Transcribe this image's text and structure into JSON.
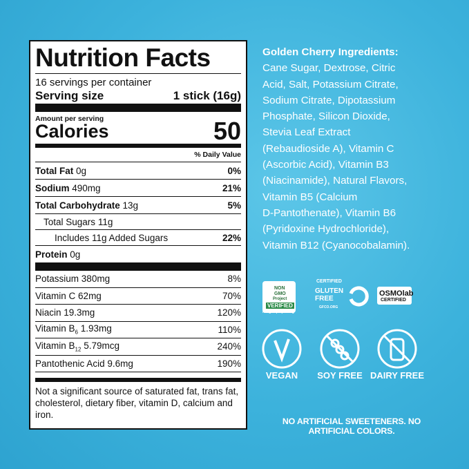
{
  "label": {
    "title": "Nutrition Facts",
    "servings": "16 servings per container",
    "serving_size_label": "Serving size",
    "serving_size_value": "1 stick (16g)",
    "amount_per_serving": "Amount per serving",
    "calories_label": "Calories",
    "calories_value": "50",
    "daily_value_header": "% Daily Value",
    "nutrients": [
      {
        "name": "Total Fat",
        "amount": "0g",
        "dv": "0%"
      },
      {
        "name": "Sodium",
        "amount": "490mg",
        "dv": "21%"
      },
      {
        "name": "Total Carbohydrate",
        "amount": "13g",
        "dv": "5%"
      },
      {
        "name": "Total Sugars",
        "amount": "11g"
      },
      {
        "name": "Includes 11g Added Sugars",
        "dv": "22%"
      },
      {
        "name": "Protein",
        "amount": "0g"
      }
    ],
    "vitamins": [
      {
        "name": "Potassium",
        "amount": "380mg",
        "dv": "8%"
      },
      {
        "name": "Vitamin C",
        "amount": "62mg",
        "dv": "70%"
      },
      {
        "name": "Niacin",
        "amount": "19.3mg",
        "dv": "120%"
      },
      {
        "name": "Vitamin B",
        "sub": "6",
        "amount": "1.93mg",
        "dv": "110%"
      },
      {
        "name": "Vitamin B",
        "sub": "12",
        "amount": "5.79mcg",
        "dv": "240%"
      },
      {
        "name": "Pantothenic Acid",
        "amount": "9.6mg",
        "dv": "190%"
      }
    ],
    "footnote": "Not a significant source of saturated fat, trans fat, cholesterol, dietary fiber, vitamin D, calcium and iron."
  },
  "ingredients": {
    "heading": "Golden Cherry Ingredients:",
    "lines": [
      "Cane Sugar, Dextrose, Citric",
      "Acid, Salt, Potassium Citrate,",
      "Sodium Citrate, Dipotassium",
      "Phosphate, Silicon Dioxide,",
      "Stevia Leaf Extract",
      "(Rebaudioside A), Vitamin C",
      "(Ascorbic Acid), Vitamin B3",
      "(Niacinamide), Natural Flavors,",
      "Vitamin B5 (Calcium",
      "D-Pantothenate), Vitamin B6",
      "(Pyridoxine Hydrochloride),",
      "Vitamin B12 (Cyanocobalamin)."
    ]
  },
  "certifications": {
    "non_gmo": [
      "NON",
      "GMO",
      "Project",
      "VERIFIED",
      "nongmoproject.org"
    ],
    "gluten_free": [
      "CERTIFIED",
      "GLUTEN",
      "FREE",
      "GFCO.ORG"
    ],
    "osmolab": [
      "OSMOlab",
      "CERTIFIED"
    ]
  },
  "badges": [
    "VEGAN",
    "SOY FREE",
    "DAIRY FREE"
  ],
  "footer": "NO ARTIFICIAL SWEETENERS. NO ARTIFICIAL COLORS."
}
